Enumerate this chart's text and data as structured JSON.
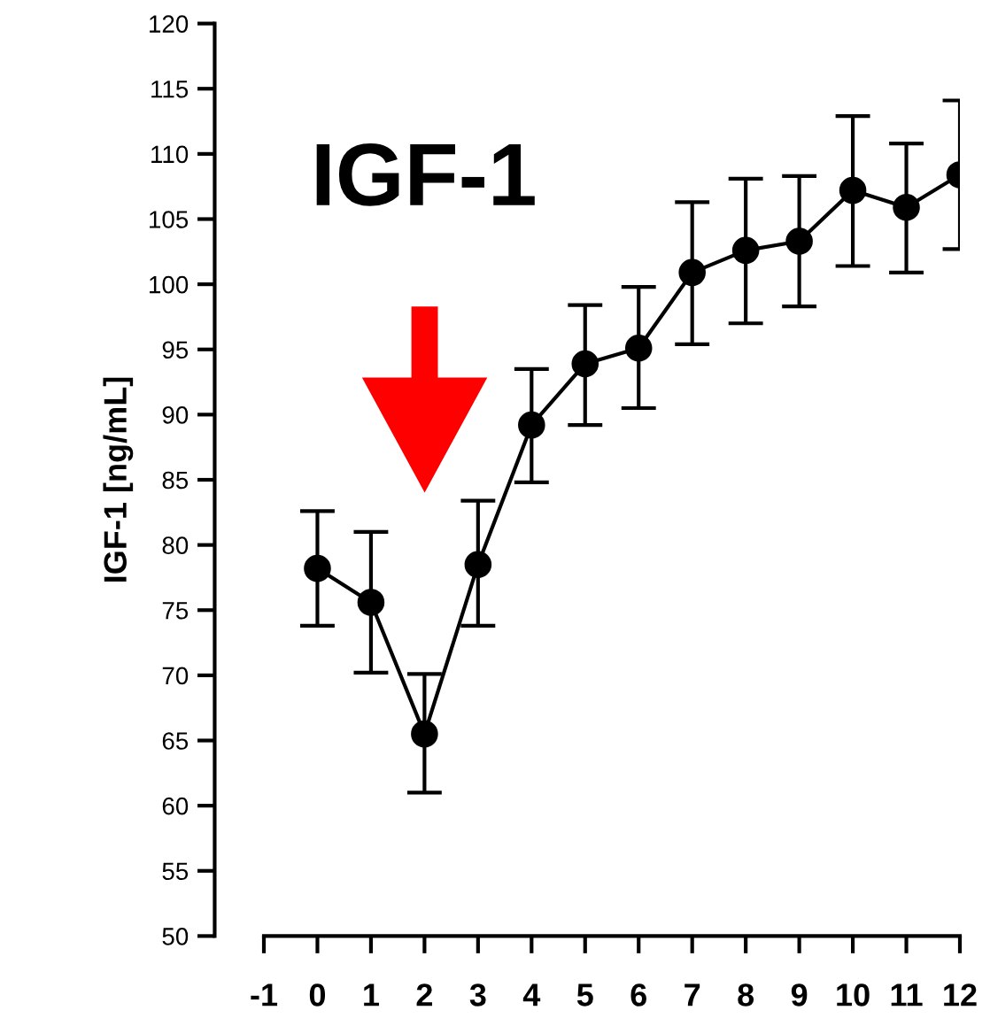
{
  "chart_data": {
    "type": "line",
    "title": "IGF-1",
    "ylabel": "IGF-1 [ng/mL]",
    "x": [
      0,
      1,
      2,
      3,
      4,
      5,
      6,
      7,
      8,
      9,
      10,
      11,
      12
    ],
    "values": [
      78.2,
      75.6,
      65.5,
      78.5,
      89.2,
      93.9,
      95.1,
      100.9,
      102.6,
      103.3,
      107.2,
      105.9,
      108.4
    ],
    "errors": [
      [
        73.8,
        82.6
      ],
      [
        70.2,
        81.0
      ],
      [
        61.0,
        70.1
      ],
      [
        73.8,
        83.4
      ],
      [
        84.8,
        93.5
      ],
      [
        89.2,
        98.4
      ],
      [
        90.5,
        99.8
      ],
      [
        95.4,
        106.3
      ],
      [
        97.0,
        108.1
      ],
      [
        98.3,
        108.3
      ],
      [
        101.4,
        112.9
      ],
      [
        100.9,
        110.8
      ],
      [
        102.7,
        114.1
      ]
    ],
    "color": "#000000",
    "marker": "circle",
    "line_style": "solid",
    "xlim": [
      -1,
      12
    ],
    "xticks": [
      -1,
      0,
      1,
      2,
      3,
      4,
      5,
      6,
      7,
      8,
      9,
      10,
      11,
      12
    ],
    "ylim": [
      50,
      120
    ],
    "yticks": [
      50,
      55,
      60,
      65,
      70,
      75,
      80,
      85,
      90,
      95,
      100,
      105,
      110,
      115,
      120
    ],
    "grid": false,
    "legend": false
  }
}
